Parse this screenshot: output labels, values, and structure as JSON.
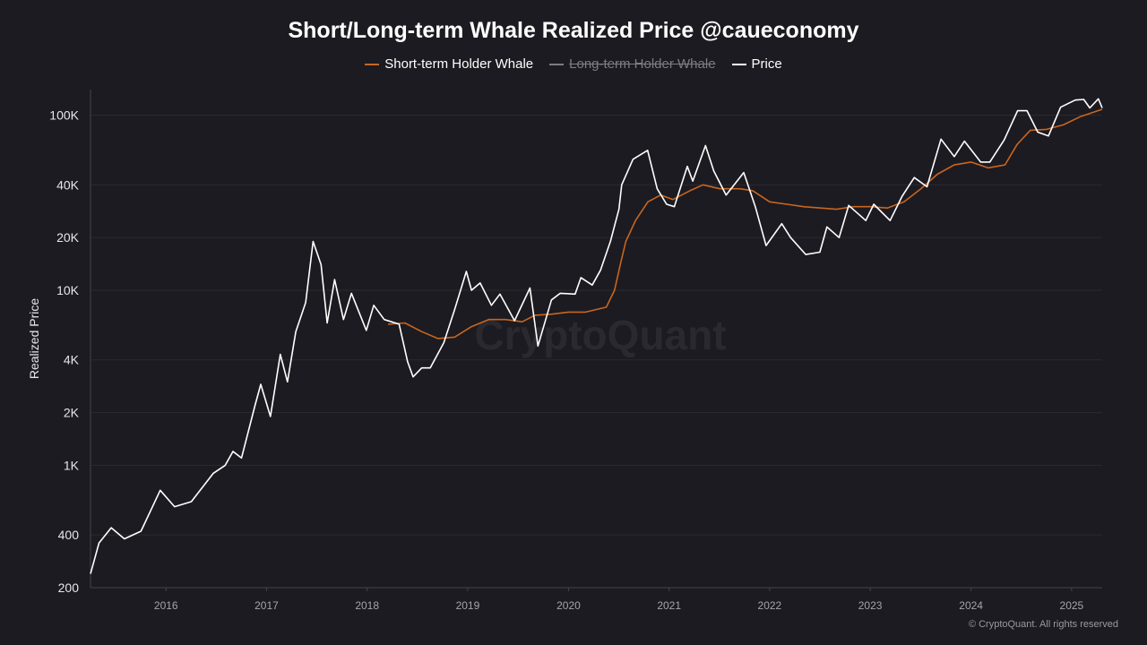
{
  "chart_data": {
    "type": "line",
    "title": "Short/Long-term Whale Realized Price @caueconomy",
    "ylabel": "Realized Price",
    "xlabel": "",
    "y_scale": "log",
    "ylim": [
      200,
      140000
    ],
    "y_ticks": [
      {
        "value": 200,
        "label": "200"
      },
      {
        "value": 400,
        "label": "400"
      },
      {
        "value": 1000,
        "label": "1K"
      },
      {
        "value": 2000,
        "label": "2K"
      },
      {
        "value": 4000,
        "label": "4K"
      },
      {
        "value": 10000,
        "label": "10K"
      },
      {
        "value": 20000,
        "label": "20K"
      },
      {
        "value": 40000,
        "label": "40K"
      },
      {
        "value": 100000,
        "label": "100K"
      }
    ],
    "x_range": [
      "2015-10-01",
      "2025-10-20"
    ],
    "x_ticks": [
      "2016",
      "2017",
      "2018",
      "2019",
      "2020",
      "2021",
      "2022",
      "2023",
      "2024",
      "2025"
    ],
    "grid": true,
    "legend_placement": "top-center",
    "legend": [
      {
        "label": "Short-term Holder Whale",
        "color": "#c8661f",
        "enabled": true
      },
      {
        "label": "Long-term Holder Whale",
        "color": "#8a8a92",
        "enabled": false
      },
      {
        "label": "Price",
        "color": "#ffffff",
        "enabled": true
      }
    ],
    "series": [
      {
        "name": "Price",
        "color": "#ffffff",
        "points": [
          [
            "2015-10-01",
            240
          ],
          [
            "2015-11-01",
            360
          ],
          [
            "2015-12-15",
            440
          ],
          [
            "2016-02-01",
            380
          ],
          [
            "2016-04-01",
            420
          ],
          [
            "2016-06-10",
            720
          ],
          [
            "2016-08-01",
            580
          ],
          [
            "2016-10-01",
            620
          ],
          [
            "2016-12-20",
            900
          ],
          [
            "2017-02-01",
            1000
          ],
          [
            "2017-03-01",
            1200
          ],
          [
            "2017-04-01",
            1100
          ],
          [
            "2017-05-20",
            2200
          ],
          [
            "2017-06-10",
            2900
          ],
          [
            "2017-07-15",
            1900
          ],
          [
            "2017-08-20",
            4300
          ],
          [
            "2017-09-15",
            3000
          ],
          [
            "2017-10-15",
            5800
          ],
          [
            "2017-11-20",
            8500
          ],
          [
            "2017-12-17",
            19000
          ],
          [
            "2018-01-15",
            14000
          ],
          [
            "2018-02-06",
            6500
          ],
          [
            "2018-03-05",
            11500
          ],
          [
            "2018-04-06",
            6800
          ],
          [
            "2018-05-05",
            9600
          ],
          [
            "2018-06-28",
            5900
          ],
          [
            "2018-07-25",
            8200
          ],
          [
            "2018-09-01",
            6800
          ],
          [
            "2018-10-25",
            6400
          ],
          [
            "2018-11-25",
            3900
          ],
          [
            "2018-12-15",
            3200
          ],
          [
            "2019-01-15",
            3600
          ],
          [
            "2019-02-15",
            3600
          ],
          [
            "2019-04-05",
            5000
          ],
          [
            "2019-05-15",
            7800
          ],
          [
            "2019-06-26",
            12800
          ],
          [
            "2019-07-15",
            10000
          ],
          [
            "2019-08-15",
            11000
          ],
          [
            "2019-09-25",
            8200
          ],
          [
            "2019-10-26",
            9500
          ],
          [
            "2019-12-18",
            6700
          ],
          [
            "2020-02-12",
            10300
          ],
          [
            "2020-03-12",
            4800
          ],
          [
            "2020-04-30",
            8800
          ],
          [
            "2020-06-01",
            9600
          ],
          [
            "2020-07-25",
            9500
          ],
          [
            "2020-08-15",
            11800
          ],
          [
            "2020-09-25",
            10700
          ],
          [
            "2020-10-25",
            13000
          ],
          [
            "2020-11-30",
            19000
          ],
          [
            "2020-12-31",
            29000
          ],
          [
            "2021-01-10",
            40000
          ],
          [
            "2021-02-20",
            56000
          ],
          [
            "2021-04-14",
            63000
          ],
          [
            "2021-05-19",
            38000
          ],
          [
            "2021-06-22",
            31000
          ],
          [
            "2021-07-20",
            30000
          ],
          [
            "2021-09-05",
            51000
          ],
          [
            "2021-09-25",
            42000
          ],
          [
            "2021-11-10",
            67000
          ],
          [
            "2021-12-10",
            48000
          ],
          [
            "2022-01-24",
            35000
          ],
          [
            "2022-03-29",
            47000
          ],
          [
            "2022-05-10",
            30000
          ],
          [
            "2022-06-18",
            18000
          ],
          [
            "2022-08-14",
            24000
          ],
          [
            "2022-09-15",
            20000
          ],
          [
            "2022-11-09",
            16000
          ],
          [
            "2022-12-30",
            16500
          ],
          [
            "2023-01-25",
            23000
          ],
          [
            "2023-03-10",
            20000
          ],
          [
            "2023-04-14",
            30500
          ],
          [
            "2023-06-15",
            25000
          ],
          [
            "2023-07-14",
            31000
          ],
          [
            "2023-09-11",
            25000
          ],
          [
            "2023-10-25",
            34500
          ],
          [
            "2023-12-08",
            44000
          ],
          [
            "2024-01-23",
            39000
          ],
          [
            "2024-03-14",
            73000
          ],
          [
            "2024-05-01",
            58000
          ],
          [
            "2024-06-07",
            71000
          ],
          [
            "2024-08-05",
            54000
          ],
          [
            "2024-09-07",
            54000
          ],
          [
            "2024-10-29",
            72000
          ],
          [
            "2024-12-17",
            106000
          ],
          [
            "2025-01-20",
            106000
          ],
          [
            "2025-02-28",
            80000
          ],
          [
            "2025-04-08",
            76000
          ],
          [
            "2025-05-22",
            111000
          ],
          [
            "2025-07-14",
            122000
          ],
          [
            "2025-08-14",
            123000
          ],
          [
            "2025-09-05",
            110000
          ],
          [
            "2025-10-06",
            124000
          ],
          [
            "2025-10-20",
            110000
          ]
        ]
      },
      {
        "name": "Short-term Holder Whale",
        "color": "#c8661f",
        "points": [
          [
            "2018-09-15",
            6400
          ],
          [
            "2018-11-15",
            6500
          ],
          [
            "2019-01-15",
            5800
          ],
          [
            "2019-03-15",
            5300
          ],
          [
            "2019-05-15",
            5400
          ],
          [
            "2019-07-15",
            6200
          ],
          [
            "2019-09-15",
            6800
          ],
          [
            "2019-11-15",
            6800
          ],
          [
            "2020-01-15",
            6600
          ],
          [
            "2020-03-01",
            7200
          ],
          [
            "2020-05-01",
            7300
          ],
          [
            "2020-07-01",
            7500
          ],
          [
            "2020-09-01",
            7500
          ],
          [
            "2020-11-15",
            8000
          ],
          [
            "2020-12-15",
            10000
          ],
          [
            "2021-01-05",
            14000
          ],
          [
            "2021-01-25",
            19000
          ],
          [
            "2021-03-01",
            25000
          ],
          [
            "2021-04-15",
            32000
          ],
          [
            "2021-06-01",
            35000
          ],
          [
            "2021-07-15",
            33000
          ],
          [
            "2021-09-15",
            37000
          ],
          [
            "2021-11-01",
            40000
          ],
          [
            "2022-01-01",
            38000
          ],
          [
            "2022-03-15",
            38000
          ],
          [
            "2022-05-01",
            37000
          ],
          [
            "2022-07-01",
            32000
          ],
          [
            "2022-09-01",
            31000
          ],
          [
            "2022-11-01",
            30000
          ],
          [
            "2023-01-01",
            29500
          ],
          [
            "2023-03-01",
            29000
          ],
          [
            "2023-05-01",
            30000
          ],
          [
            "2023-07-01",
            30000
          ],
          [
            "2023-09-01",
            29500
          ],
          [
            "2023-11-01",
            32000
          ],
          [
            "2024-01-01",
            38000
          ],
          [
            "2024-03-01",
            46000
          ],
          [
            "2024-05-01",
            52000
          ],
          [
            "2024-07-01",
            54000
          ],
          [
            "2024-09-01",
            50000
          ],
          [
            "2024-11-01",
            52000
          ],
          [
            "2024-12-15",
            68000
          ],
          [
            "2025-02-01",
            82000
          ],
          [
            "2025-04-01",
            83000
          ],
          [
            "2025-06-01",
            88000
          ],
          [
            "2025-08-01",
            98000
          ],
          [
            "2025-10-20",
            108000
          ]
        ]
      }
    ],
    "watermark": "CryptoQuant"
  },
  "credit": "© CryptoQuant. All rights reserved"
}
